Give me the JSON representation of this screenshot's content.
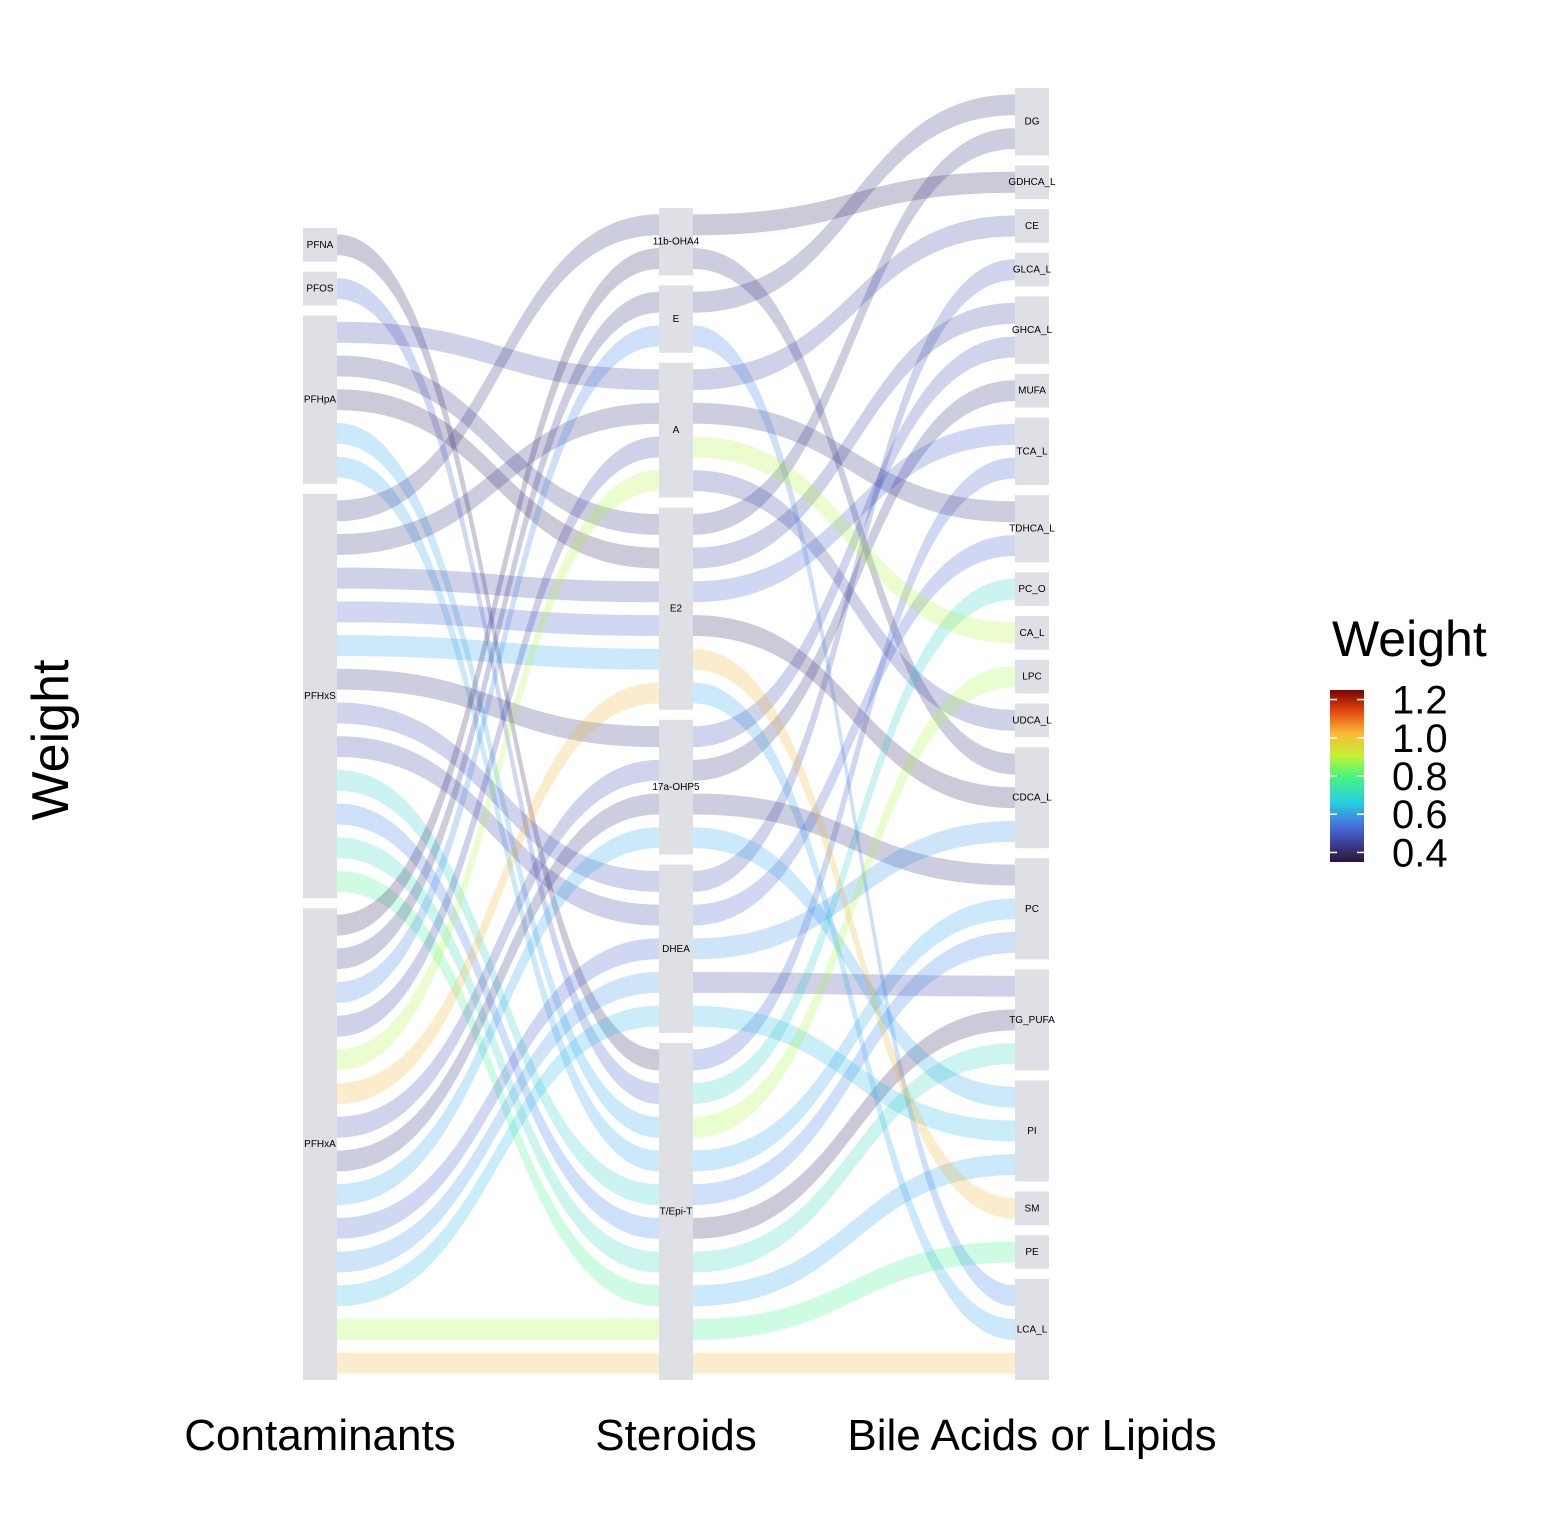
{
  "y_axis_label": "Weight",
  "axis_labels": [
    "Contaminants",
    "Steroids",
    "Bile Acids or Lipids"
  ],
  "legend": {
    "title": "Weight",
    "ticks": [
      "1.2",
      "1.0",
      "0.8",
      "0.6",
      "0.4"
    ],
    "min": 0.35,
    "max": 1.25,
    "tick_values": [
      1.2,
      1.0,
      0.8,
      0.6,
      0.4
    ],
    "colormap": "turbo"
  },
  "chart_data": {
    "type": "alluvial",
    "axes": [
      "Contaminants",
      "Steroids",
      "Bile Acids or Lipids"
    ],
    "nodes": {
      "Contaminants": [
        "PFNA",
        "PFOS",
        "PFHpA",
        "PFHxS",
        "PFHxA"
      ],
      "Steroids": [
        "11b-OHA4",
        "E",
        "A",
        "E2",
        "17a-OHP5",
        "DHEA",
        "T/Epi-T"
      ],
      "Bile Acids or Lipids": [
        "DG",
        "GDHCA_L",
        "CE",
        "GLCA_L",
        "GHCA_L",
        "MUFA",
        "TCA_L",
        "TDHCA_L",
        "PC_O",
        "CA_L",
        "LPC",
        "UDCA_L",
        "CDCA_L",
        "PC",
        "TG_PUFA",
        "PI",
        "SM",
        "PE",
        "LCA_L"
      ]
    },
    "flows": [
      {
        "contaminant": "PFNA",
        "steroid": "T/Epi-T",
        "lipid": "TG_PUFA",
        "weight": 0.38
      },
      {
        "contaminant": "PFOS",
        "steroid": "T/Epi-T",
        "lipid": "TCA_L",
        "weight": 0.45
      },
      {
        "contaminant": "PFHpA",
        "steroid": "E2",
        "lipid": "CDCA_L",
        "weight": 0.38
      },
      {
        "contaminant": "PFHpA",
        "steroid": "E2",
        "lipid": "DG",
        "weight": 0.4
      },
      {
        "contaminant": "PFHpA",
        "steroid": "A",
        "lipid": "UDCA_L",
        "weight": 0.42
      },
      {
        "contaminant": "PFHpA",
        "steroid": "T/Epi-T",
        "lipid": "PI",
        "weight": 0.55
      },
      {
        "contaminant": "PFHpA",
        "steroid": "T/Epi-T",
        "lipid": "PC",
        "weight": 0.55
      },
      {
        "contaminant": "PFHxS",
        "steroid": "A",
        "lipid": "TDHCA_L",
        "weight": 0.4
      },
      {
        "contaminant": "PFHxS",
        "steroid": "E2",
        "lipid": "GHCA_L",
        "weight": 0.42
      },
      {
        "contaminant": "PFHxS",
        "steroid": "E2",
        "lipid": "TCA_L",
        "weight": 0.45
      },
      {
        "contaminant": "PFHxS",
        "steroid": "11b-OHA4",
        "lipid": "CDCA_L",
        "weight": 0.4
      },
      {
        "contaminant": "PFHxS",
        "steroid": "17a-OHP5",
        "lipid": "MUFA",
        "weight": 0.4
      },
      {
        "contaminant": "PFHxS",
        "steroid": "DHEA",
        "lipid": "TG_PUFA",
        "weight": 0.42
      },
      {
        "contaminant": "PFHxS",
        "steroid": "DHEA",
        "lipid": "GLCA_L",
        "weight": 0.43
      },
      {
        "contaminant": "PFHxS",
        "steroid": "T/Epi-T",
        "lipid": "PC",
        "weight": 0.5
      },
      {
        "contaminant": "PFHxS",
        "steroid": "E2",
        "lipid": "LCA_L",
        "weight": 0.55
      },
      {
        "contaminant": "PFHxS",
        "steroid": "T/Epi-T",
        "lipid": "PC_O",
        "weight": 0.62
      },
      {
        "contaminant": "PFHxS",
        "steroid": "T/Epi-T",
        "lipid": "TG_PUFA",
        "weight": 0.64
      },
      {
        "contaminant": "PFHxS",
        "steroid": "T/Epi-T",
        "lipid": "PE",
        "weight": 0.7
      },
      {
        "contaminant": "PFHxA",
        "steroid": "11b-OHA4",
        "lipid": "GDHCA_L",
        "weight": 0.38
      },
      {
        "contaminant": "PFHxA",
        "steroid": "E",
        "lipid": "DG",
        "weight": 0.4
      },
      {
        "contaminant": "PFHxA",
        "steroid": "A",
        "lipid": "CE",
        "weight": 0.42
      },
      {
        "contaminant": "PFHxA",
        "steroid": "17a-OHP5",
        "lipid": "PC",
        "weight": 0.4
      },
      {
        "contaminant": "PFHxA",
        "steroid": "17a-OHP5",
        "lipid": "GHCA_L",
        "weight": 0.43
      },
      {
        "contaminant": "PFHxA",
        "steroid": "DHEA",
        "lipid": "TDHCA_L",
        "weight": 0.45
      },
      {
        "contaminant": "PFHxA",
        "steroid": "E",
        "lipid": "LCA_L",
        "weight": 0.5
      },
      {
        "contaminant": "PFHxA",
        "steroid": "17a-OHP5",
        "lipid": "PI",
        "weight": 0.55
      },
      {
        "contaminant": "PFHxA",
        "steroid": "DHEA",
        "lipid": "CDCA_L",
        "weight": 0.52
      },
      {
        "contaminant": "PFHxA",
        "steroid": "DHEA",
        "lipid": "PI",
        "weight": 0.58
      },
      {
        "contaminant": "PFHxA",
        "steroid": "A",
        "lipid": "CA_L",
        "weight": 0.82
      },
      {
        "contaminant": "PFHxA",
        "steroid": "T/Epi-T",
        "lipid": "LPC",
        "weight": 0.8
      },
      {
        "contaminant": "PFHxA",
        "steroid": "E2",
        "lipid": "SM",
        "weight": 0.95
      },
      {
        "contaminant": "PFHxA",
        "steroid": "T/Epi-T",
        "lipid": "LCA_L",
        "weight": 0.95
      }
    ]
  }
}
